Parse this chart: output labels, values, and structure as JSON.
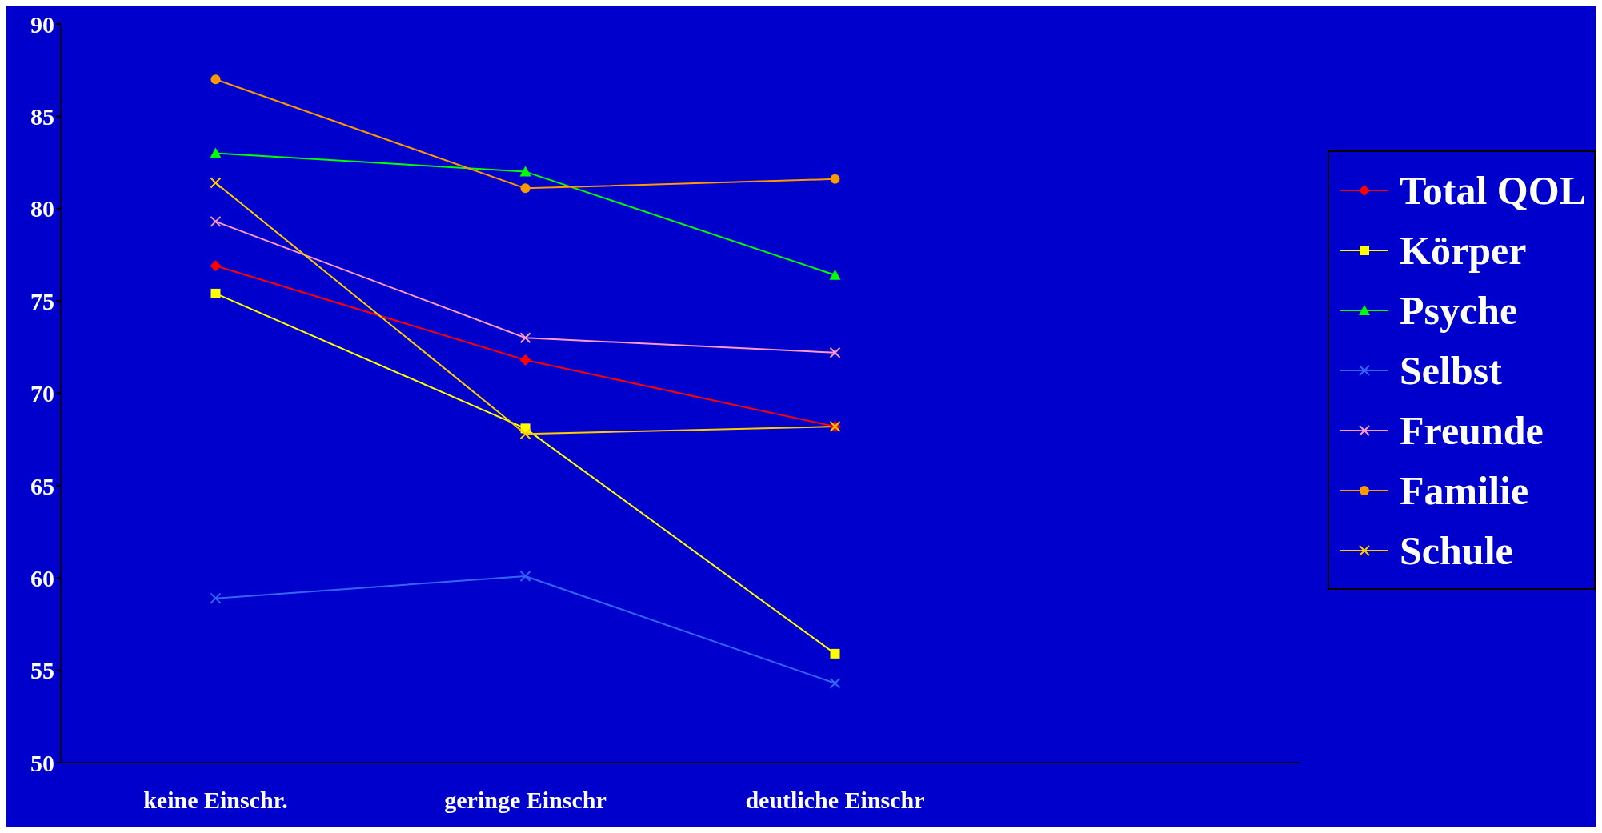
{
  "chart_data": {
    "type": "line",
    "categories": [
      "keine Einschr.",
      "geringe Einschr",
      "deutliche Einschr",
      null
    ],
    "series": [
      {
        "name": "Total QOL",
        "color": "#ff0000",
        "marker": "diamond",
        "values": [
          76.9,
          71.8,
          68.2,
          null
        ]
      },
      {
        "name": "Körper",
        "color": "#ffff00",
        "marker": "square",
        "values": [
          75.4,
          68.1,
          55.9,
          null
        ]
      },
      {
        "name": "Psyche",
        "color": "#00ff00",
        "marker": "triangle",
        "values": [
          83.0,
          82.0,
          76.4,
          null
        ]
      },
      {
        "name": "Selbst",
        "color": "#3366ff",
        "marker": "cross",
        "values": [
          58.9,
          60.1,
          54.3,
          null
        ]
      },
      {
        "name": "Freunde",
        "color": "#ff99cc",
        "marker": "cross",
        "values": [
          79.3,
          73.0,
          72.2,
          null
        ]
      },
      {
        "name": "Familie",
        "color": "#ff9900",
        "marker": "circle",
        "values": [
          87.0,
          81.1,
          81.6,
          null
        ]
      },
      {
        "name": "Schule",
        "color": "#ffcc00",
        "marker": "cross",
        "values": [
          81.4,
          67.8,
          68.2,
          null
        ]
      }
    ],
    "ylim": [
      50,
      90
    ],
    "yticks": [
      50,
      55,
      60,
      65,
      70,
      75,
      80,
      85,
      90
    ],
    "grid": false,
    "legend": "right",
    "line_style": "solid"
  }
}
